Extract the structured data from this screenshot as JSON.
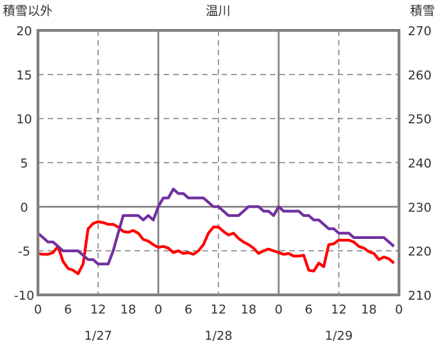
{
  "chart_data": {
    "type": "line",
    "title": "温川",
    "ylabel_left": "積雪以外",
    "ylabel_right": "積雪",
    "ylim_left": [
      -10,
      20
    ],
    "ylim_right": [
      210,
      270
    ],
    "yticks_left": [
      "20",
      "15",
      "10",
      "5",
      "0",
      "-5",
      "-10"
    ],
    "yticks_right": [
      "270",
      "260",
      "250",
      "240",
      "230",
      "220",
      "210"
    ],
    "xticks": [
      "0",
      "6",
      "12",
      "18",
      "0",
      "6",
      "12",
      "18",
      "0",
      "6",
      "12",
      "18",
      "0"
    ],
    "date_labels": [
      "1/27",
      "1/28",
      "1/29"
    ],
    "x_hours_range": [
      0,
      72
    ],
    "grid": true,
    "series": [
      {
        "name": "積雪以外",
        "axis": "left",
        "color": "#ff0000",
        "values": [
          -5.3,
          -5.4,
          -5.4,
          -5.2,
          -4.5,
          -6.2,
          -7,
          -7.2,
          -7.6,
          -6.5,
          -2.5,
          -1.9,
          -1.7,
          -1.8,
          -2,
          -2,
          -2.3,
          -2.8,
          -2.9,
          -2.7,
          -3,
          -3.7,
          -3.9,
          -4.3,
          -4.6,
          -4.5,
          -4.7,
          -5.2,
          -5,
          -5.3,
          -5.2,
          -5.4,
          -5,
          -4.3,
          -3,
          -2.3,
          -2.3,
          -2.8,
          -3.2,
          -3,
          -3.6,
          -4,
          -4.3,
          -4.7,
          -5.3,
          -5,
          -4.8,
          -5,
          -5.2,
          -5.4,
          -5.3,
          -5.6,
          -5.6,
          -5.5,
          -7.2,
          -7.3,
          -6.4,
          -6.8,
          -4.3,
          -4.2,
          -3.8,
          -3.8,
          -3.8,
          -4,
          -4.5,
          -4.7,
          -5.1,
          -5.3,
          -6,
          -5.7,
          -5.9,
          -6.4
        ]
      },
      {
        "name": "積雪",
        "axis": "right",
        "color": "#7030a0",
        "values": [
          224,
          223,
          222,
          222,
          221,
          220,
          220,
          220,
          220,
          219,
          218,
          218,
          217,
          217,
          217,
          220,
          224,
          228,
          228,
          228,
          228,
          227,
          228,
          227,
          230,
          232,
          232,
          234,
          233,
          233,
          232,
          232,
          232,
          232,
          231,
          230,
          230,
          229,
          228,
          228,
          228,
          229,
          230,
          230,
          230,
          229,
          229,
          228,
          230,
          229,
          229,
          229,
          229,
          228,
          228,
          227,
          227,
          226,
          225,
          225,
          224,
          224,
          224,
          223,
          223,
          223,
          223,
          223,
          223,
          223,
          222,
          221
        ]
      }
    ]
  }
}
